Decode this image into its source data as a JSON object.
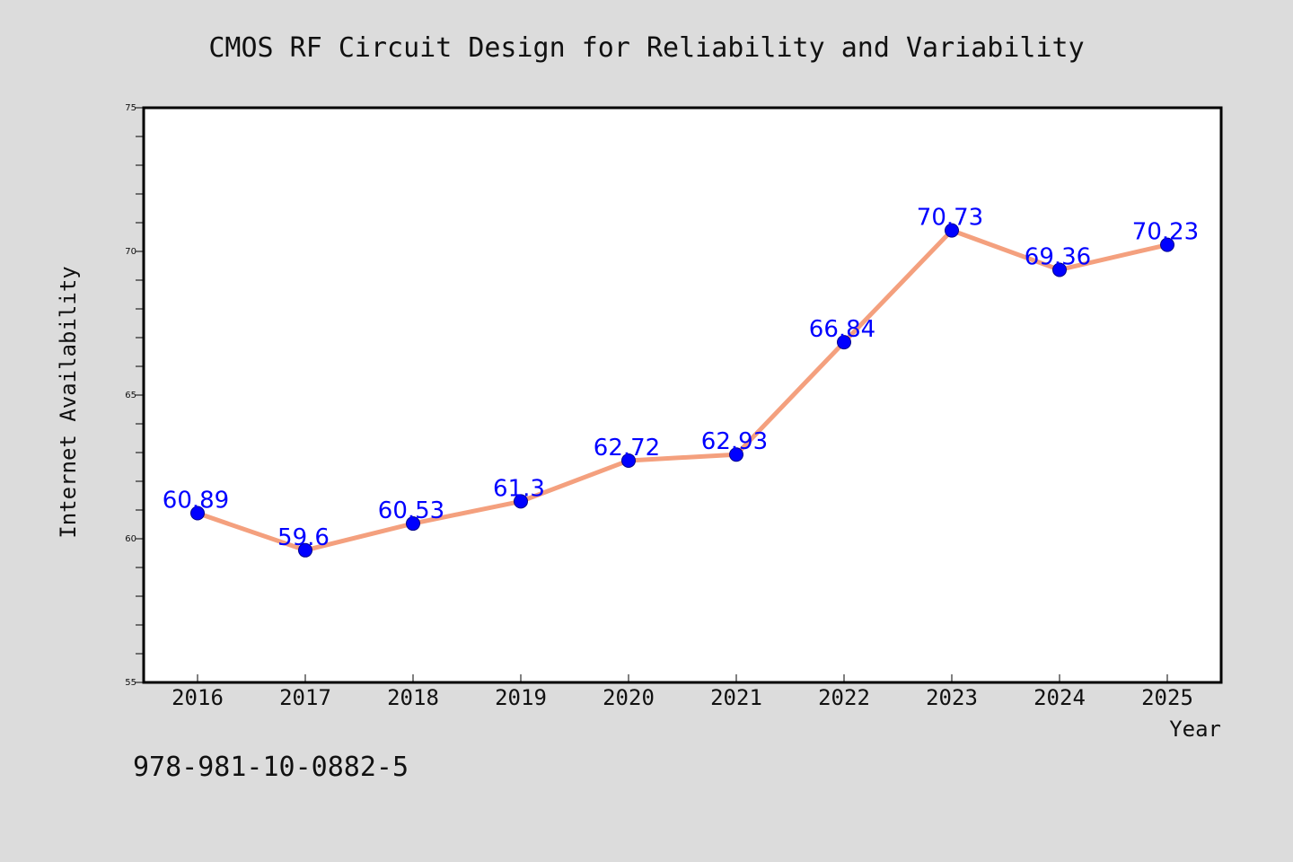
{
  "isbn_label": "978-981-10-0882-5",
  "colors": {
    "background": "#dcdcdc",
    "plot_background": "#ffffff",
    "line": "#f4a07e",
    "marker": "#0000ff",
    "data_label": "#0000ff"
  },
  "chart_data": {
    "type": "line",
    "title": "CMOS RF Circuit Design for Reliability and Variability",
    "xlabel": "Year",
    "ylabel": "Internet Availability",
    "categories": [
      "2016",
      "2017",
      "2018",
      "2019",
      "2020",
      "2021",
      "2022",
      "2023",
      "2024",
      "2025"
    ],
    "series": [
      {
        "values": [
          60.89,
          59.6,
          60.53,
          61.3,
          62.72,
          62.93,
          66.84,
          70.73,
          69.36,
          70.23
        ],
        "labels": [
          "60.89",
          "59.6",
          "60.53",
          "61.3",
          "62.72",
          "62.93",
          "66.84",
          "70.73",
          "69.36",
          "70.23"
        ]
      }
    ],
    "ylim": [
      55,
      75
    ],
    "yticks": [
      55,
      60,
      65,
      70,
      75
    ],
    "ytick_labels": [
      "55",
      "60",
      "65",
      "70",
      "75"
    ],
    "y_minor_step": 1,
    "grid": false,
    "legend": "none"
  }
}
